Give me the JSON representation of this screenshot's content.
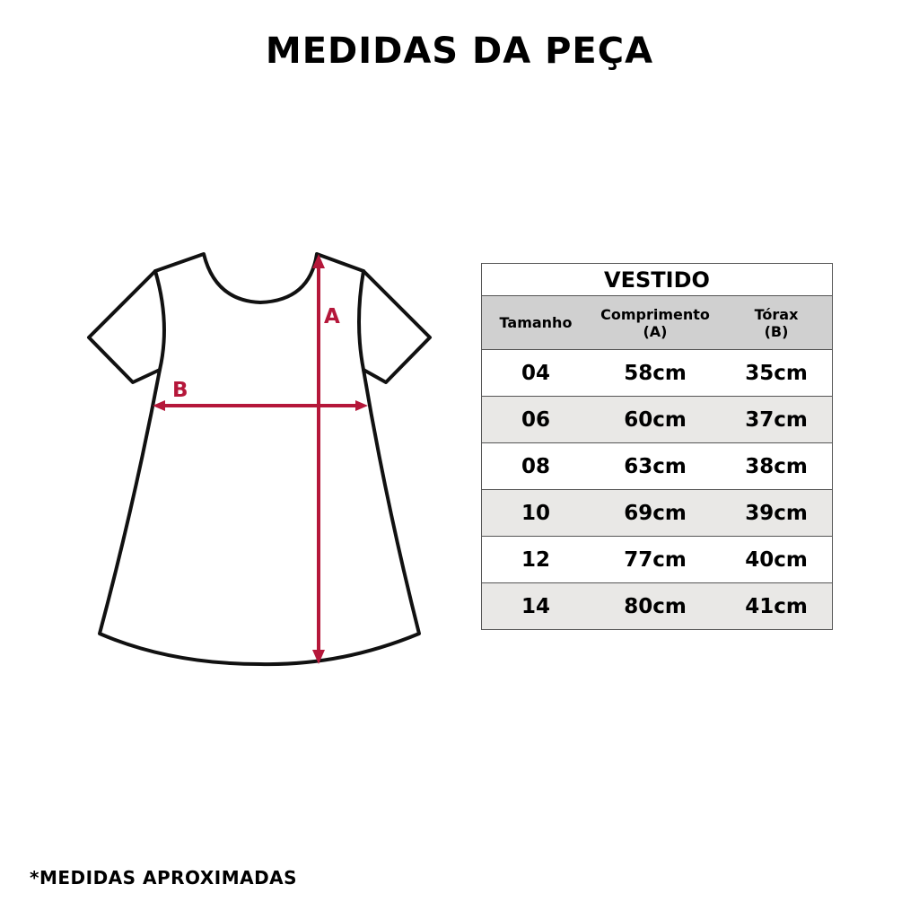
{
  "title": "MEDIDAS DA PEÇA",
  "diagram": {
    "label_a": "A",
    "label_b": "B",
    "accent_color": "#b5173a"
  },
  "table": {
    "title": "VESTIDO",
    "headers": [
      {
        "label": "Tamanho",
        "sub": ""
      },
      {
        "label": "Comprimento",
        "sub": "(A)"
      },
      {
        "label": "Tórax",
        "sub": "(B)"
      }
    ],
    "rows": [
      [
        "04",
        "58cm",
        "35cm"
      ],
      [
        "06",
        "60cm",
        "37cm"
      ],
      [
        "08",
        "63cm",
        "38cm"
      ],
      [
        "10",
        "69cm",
        "39cm"
      ],
      [
        "12",
        "77cm",
        "40cm"
      ],
      [
        "14",
        "80cm",
        "41cm"
      ]
    ]
  },
  "footnote": "*MEDIDAS APROXIMADAS"
}
